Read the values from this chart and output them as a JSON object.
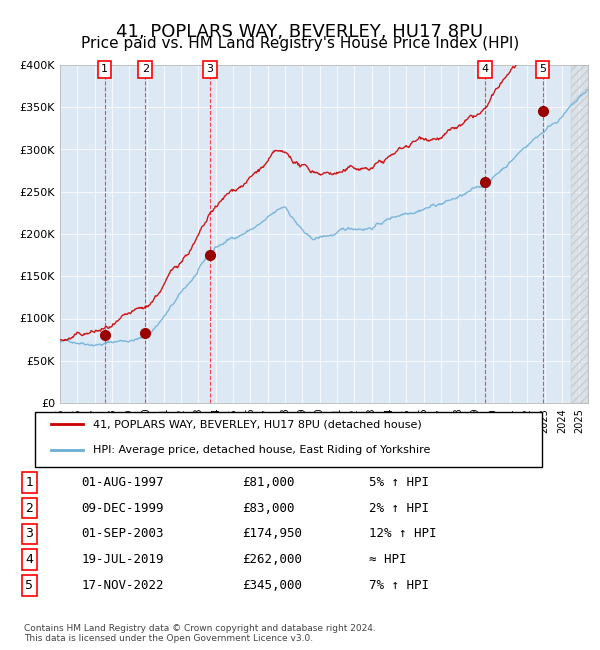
{
  "title": "41, POPLARS WAY, BEVERLEY, HU17 8PU",
  "subtitle": "Price paid vs. HM Land Registry's House Price Index (HPI)",
  "title_fontsize": 13,
  "subtitle_fontsize": 11,
  "background_color": "#dce9f5",
  "plot_bg_color": "#dce9f5",
  "sales": [
    {
      "label": "1",
      "date_x": 1997.58,
      "price": 81000,
      "date_str": "01-AUG-1997",
      "hpi_rel": "5% ↑ HPI"
    },
    {
      "label": "2",
      "date_x": 1999.93,
      "price": 83000,
      "date_str": "09-DEC-1999",
      "hpi_rel": "2% ↑ HPI"
    },
    {
      "label": "3",
      "date_x": 2003.66,
      "price": 174950,
      "date_str": "01-SEP-2003",
      "hpi_rel": "12% ↑ HPI"
    },
    {
      "label": "4",
      "date_x": 2019.54,
      "price": 262000,
      "date_str": "19-JUL-2019",
      "hpi_rel": "≈ HPI"
    },
    {
      "label": "5",
      "date_x": 2022.88,
      "price": 345000,
      "date_str": "17-NOV-2022",
      "hpi_rel": "7% ↑ HPI"
    }
  ],
  "legend_line1": "41, POPLARS WAY, BEVERLEY, HU17 8PU (detached house)",
  "legend_line2": "HPI: Average price, detached house, East Riding of Yorkshire",
  "footer": "Contains HM Land Registry data © Crown copyright and database right 2024.\nThis data is licensed under the Open Government Licence v3.0.",
  "hpi_color": "#6baed6",
  "price_color": "#cc0000",
  "marker_color": "#990000",
  "ylim": [
    0,
    400000
  ],
  "xlim_start": 1995.0,
  "xlim_end": 2025.5
}
